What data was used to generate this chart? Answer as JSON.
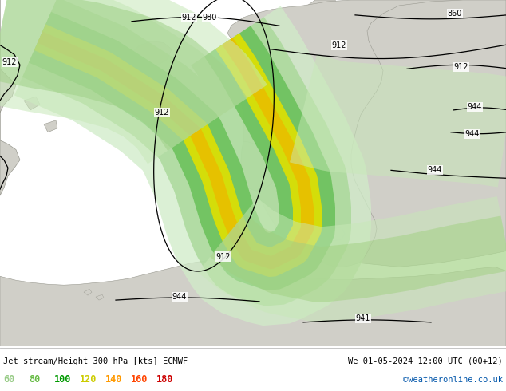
{
  "title_left": "Jet stream/Height 300 hPa [kts] ECMWF",
  "title_right": "We 01-05-2024 12:00 UTC (00+12)",
  "credit": "©weatheronline.co.uk",
  "legend_values": [
    60,
    80,
    100,
    120,
    140,
    160,
    180
  ],
  "legend_colors": [
    "#99cc88",
    "#66bb44",
    "#009900",
    "#cccc00",
    "#ff9900",
    "#ff4400",
    "#cc0000"
  ],
  "bg_land": "#d0cfc8",
  "bg_sea": "#f0f0ee",
  "figsize": [
    6.34,
    4.9
  ],
  "dpi": 100,
  "bottom_bg": "#ffffff",
  "bottom_text_color": "#000000",
  "credit_color": "#0055aa",
  "contour_lw": 0.9,
  "jet_colors": [
    "#c8e8c0",
    "#a0d090",
    "#60b840",
    "#d8d800",
    "#ffcc00"
  ],
  "jet_alphas": [
    0.7,
    0.8,
    0.9,
    1.0,
    1.0
  ]
}
